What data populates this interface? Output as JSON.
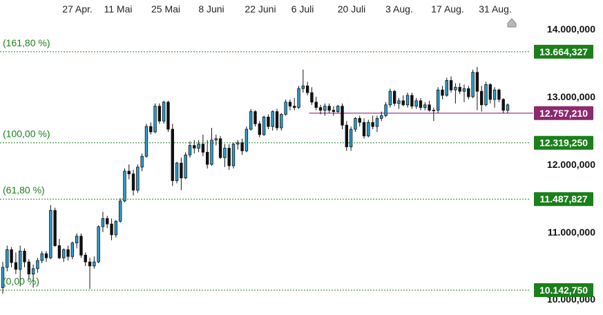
{
  "chart_data": {
    "type": "candlestick",
    "x_ticks": [
      "27 Apr.",
      "11 Mai",
      "25 Mai",
      "8 Juni",
      "22 Juni",
      "6 Juli",
      "20 Juli",
      "3 Aug.",
      "17 Aug.",
      "31 Aug."
    ],
    "y_ticks": [
      "14.000,000",
      "13.000,000",
      "12.000,000",
      "11.000,000",
      "10.000,000"
    ],
    "y_tick_values": [
      14000,
      13000,
      12000,
      11000,
      10000
    ],
    "ylim": [
      9950,
      14250
    ],
    "fibonacci_levels": [
      {
        "label": "(161,80 %)",
        "value": 13664.327,
        "tag": "13.664,327"
      },
      {
        "label": "(100,00 %)",
        "value": 12319.25,
        "tag": "12.319,250"
      },
      {
        "label": "(61,80 %)",
        "value": 11487.827,
        "tag": "11.487,827"
      },
      {
        "label": "(0,00 %)",
        "value": 10142.75,
        "tag": "10.142,750"
      }
    ],
    "current_price": {
      "value": 12757.21,
      "tag": "12.757,210",
      "line_start_index": 71
    },
    "colors": {
      "up": "#2a9fd0",
      "down": "#111111",
      "fib": "#1b7f1b",
      "current": "#8b2a6e",
      "tick": "#222222"
    },
    "candles": [
      {
        "o": 10180,
        "h": 10560,
        "l": 10090,
        "c": 10480
      },
      {
        "o": 10480,
        "h": 10800,
        "l": 10420,
        "c": 10740
      },
      {
        "o": 10740,
        "h": 10780,
        "l": 10480,
        "c": 10550
      },
      {
        "o": 10550,
        "h": 10700,
        "l": 10380,
        "c": 10450
      },
      {
        "o": 10450,
        "h": 10800,
        "l": 10200,
        "c": 10720
      },
      {
        "o": 10720,
        "h": 10760,
        "l": 10480,
        "c": 10560
      },
      {
        "o": 10560,
        "h": 10600,
        "l": 10300,
        "c": 10380
      },
      {
        "o": 10380,
        "h": 10520,
        "l": 10180,
        "c": 10460
      },
      {
        "o": 10460,
        "h": 10620,
        "l": 10400,
        "c": 10580
      },
      {
        "o": 10580,
        "h": 10720,
        "l": 10540,
        "c": 10680
      },
      {
        "o": 10680,
        "h": 10720,
        "l": 10560,
        "c": 10620
      },
      {
        "o": 10620,
        "h": 11400,
        "l": 10600,
        "c": 11320
      },
      {
        "o": 11320,
        "h": 11360,
        "l": 10780,
        "c": 10800
      },
      {
        "o": 10800,
        "h": 10900,
        "l": 10600,
        "c": 10620
      },
      {
        "o": 10620,
        "h": 10760,
        "l": 10560,
        "c": 10740
      },
      {
        "o": 10740,
        "h": 10800,
        "l": 10580,
        "c": 10640
      },
      {
        "o": 10640,
        "h": 10860,
        "l": 10600,
        "c": 10840
      },
      {
        "o": 10840,
        "h": 10980,
        "l": 10760,
        "c": 10940
      },
      {
        "o": 10940,
        "h": 10980,
        "l": 10620,
        "c": 10660
      },
      {
        "o": 10660,
        "h": 10700,
        "l": 10500,
        "c": 10560
      },
      {
        "o": 10560,
        "h": 10620,
        "l": 10160,
        "c": 10500
      },
      {
        "o": 10500,
        "h": 10640,
        "l": 10460,
        "c": 10560
      },
      {
        "o": 10560,
        "h": 11100,
        "l": 10540,
        "c": 11080
      },
      {
        "o": 11080,
        "h": 11300,
        "l": 11000,
        "c": 11200
      },
      {
        "o": 11200,
        "h": 11240,
        "l": 11060,
        "c": 11120
      },
      {
        "o": 11120,
        "h": 11200,
        "l": 10880,
        "c": 10960
      },
      {
        "o": 10960,
        "h": 11180,
        "l": 10920,
        "c": 11160
      },
      {
        "o": 11160,
        "h": 11500,
        "l": 11140,
        "c": 11460
      },
      {
        "o": 11460,
        "h": 11940,
        "l": 11440,
        "c": 11900
      },
      {
        "o": 11900,
        "h": 12000,
        "l": 11780,
        "c": 11860
      },
      {
        "o": 11860,
        "h": 11920,
        "l": 11540,
        "c": 11620
      },
      {
        "o": 11620,
        "h": 12000,
        "l": 11580,
        "c": 11960
      },
      {
        "o": 11960,
        "h": 12160,
        "l": 11900,
        "c": 12120
      },
      {
        "o": 12120,
        "h": 12600,
        "l": 12100,
        "c": 12560
      },
      {
        "o": 12560,
        "h": 12620,
        "l": 12440,
        "c": 12480
      },
      {
        "o": 12480,
        "h": 12900,
        "l": 12460,
        "c": 12860
      },
      {
        "o": 12860,
        "h": 12900,
        "l": 12600,
        "c": 12640
      },
      {
        "o": 12640,
        "h": 12940,
        "l": 12600,
        "c": 12920
      },
      {
        "o": 12920,
        "h": 12940,
        "l": 12480,
        "c": 12520
      },
      {
        "o": 12520,
        "h": 12600,
        "l": 11680,
        "c": 11760
      },
      {
        "o": 11760,
        "h": 12040,
        "l": 11720,
        "c": 12020
      },
      {
        "o": 12020,
        "h": 12100,
        "l": 11620,
        "c": 11800
      },
      {
        "o": 11800,
        "h": 12180,
        "l": 11780,
        "c": 12140
      },
      {
        "o": 12140,
        "h": 12340,
        "l": 12100,
        "c": 12280
      },
      {
        "o": 12280,
        "h": 12360,
        "l": 12160,
        "c": 12240
      },
      {
        "o": 12240,
        "h": 12360,
        "l": 12180,
        "c": 12300
      },
      {
        "o": 12300,
        "h": 12440,
        "l": 12120,
        "c": 12180
      },
      {
        "o": 12180,
        "h": 12360,
        "l": 11940,
        "c": 12000
      },
      {
        "o": 12000,
        "h": 12540,
        "l": 11980,
        "c": 12360
      },
      {
        "o": 12360,
        "h": 12440,
        "l": 12280,
        "c": 12380
      },
      {
        "o": 12380,
        "h": 12420,
        "l": 12080,
        "c": 12100
      },
      {
        "o": 12100,
        "h": 12300,
        "l": 11960,
        "c": 12240
      },
      {
        "o": 12240,
        "h": 12300,
        "l": 11920,
        "c": 11980
      },
      {
        "o": 11980,
        "h": 12320,
        "l": 11940,
        "c": 12300
      },
      {
        "o": 12300,
        "h": 12360,
        "l": 12220,
        "c": 12320
      },
      {
        "o": 12320,
        "h": 12380,
        "l": 12140,
        "c": 12200
      },
      {
        "o": 12200,
        "h": 12560,
        "l": 12180,
        "c": 12520
      },
      {
        "o": 12520,
        "h": 12820,
        "l": 12500,
        "c": 12780
      },
      {
        "o": 12780,
        "h": 12800,
        "l": 12560,
        "c": 12600
      },
      {
        "o": 12600,
        "h": 12640,
        "l": 12400,
        "c": 12440
      },
      {
        "o": 12440,
        "h": 12720,
        "l": 12420,
        "c": 12700
      },
      {
        "o": 12700,
        "h": 12740,
        "l": 12520,
        "c": 12560
      },
      {
        "o": 12560,
        "h": 12800,
        "l": 12500,
        "c": 12780
      },
      {
        "o": 12780,
        "h": 12820,
        "l": 12500,
        "c": 12540
      },
      {
        "o": 12540,
        "h": 12760,
        "l": 12500,
        "c": 12740
      },
      {
        "o": 12740,
        "h": 12960,
        "l": 12720,
        "c": 12920
      },
      {
        "o": 12920,
        "h": 12960,
        "l": 12800,
        "c": 12860
      },
      {
        "o": 12860,
        "h": 12980,
        "l": 12800,
        "c": 12840
      },
      {
        "o": 12840,
        "h": 13160,
        "l": 12820,
        "c": 13120
      },
      {
        "o": 13120,
        "h": 13400,
        "l": 13060,
        "c": 13160
      },
      {
        "o": 13160,
        "h": 13220,
        "l": 13020,
        "c": 13060
      },
      {
        "o": 13060,
        "h": 13140,
        "l": 12880,
        "c": 12920
      },
      {
        "o": 12920,
        "h": 13000,
        "l": 12800,
        "c": 12840
      },
      {
        "o": 12840,
        "h": 12880,
        "l": 12740,
        "c": 12800
      },
      {
        "o": 12800,
        "h": 12900,
        "l": 12720,
        "c": 12860
      },
      {
        "o": 12860,
        "h": 12900,
        "l": 12760,
        "c": 12800
      },
      {
        "o": 12800,
        "h": 12860,
        "l": 12720,
        "c": 12780
      },
      {
        "o": 12780,
        "h": 12880,
        "l": 12760,
        "c": 12860
      },
      {
        "o": 12860,
        "h": 12900,
        "l": 12520,
        "c": 12580
      },
      {
        "o": 12580,
        "h": 12640,
        "l": 12200,
        "c": 12260
      },
      {
        "o": 12260,
        "h": 12560,
        "l": 12200,
        "c": 12520
      },
      {
        "o": 12520,
        "h": 12700,
        "l": 12480,
        "c": 12680
      },
      {
        "o": 12680,
        "h": 12720,
        "l": 12560,
        "c": 12620
      },
      {
        "o": 12620,
        "h": 12680,
        "l": 12380,
        "c": 12420
      },
      {
        "o": 12420,
        "h": 12660,
        "l": 12400,
        "c": 12620
      },
      {
        "o": 12620,
        "h": 12720,
        "l": 12520,
        "c": 12560
      },
      {
        "o": 12560,
        "h": 12720,
        "l": 12480,
        "c": 12680
      },
      {
        "o": 12680,
        "h": 12780,
        "l": 12640,
        "c": 12720
      },
      {
        "o": 12720,
        "h": 12920,
        "l": 12700,
        "c": 12880
      },
      {
        "o": 12880,
        "h": 13120,
        "l": 12840,
        "c": 13080
      },
      {
        "o": 13080,
        "h": 13100,
        "l": 12860,
        "c": 12900
      },
      {
        "o": 12900,
        "h": 12980,
        "l": 12820,
        "c": 12940
      },
      {
        "o": 12940,
        "h": 13020,
        "l": 12860,
        "c": 12880
      },
      {
        "o": 12880,
        "h": 13060,
        "l": 12840,
        "c": 13020
      },
      {
        "o": 13020,
        "h": 13060,
        "l": 12820,
        "c": 12860
      },
      {
        "o": 12860,
        "h": 12980,
        "l": 12820,
        "c": 12940
      },
      {
        "o": 12940,
        "h": 12980,
        "l": 12800,
        "c": 12840
      },
      {
        "o": 12840,
        "h": 12920,
        "l": 12800,
        "c": 12880
      },
      {
        "o": 12880,
        "h": 12940,
        "l": 12780,
        "c": 12800
      },
      {
        "o": 12800,
        "h": 12840,
        "l": 12640,
        "c": 12800
      },
      {
        "o": 12800,
        "h": 13140,
        "l": 12760,
        "c": 13100
      },
      {
        "o": 13100,
        "h": 13160,
        "l": 12960,
        "c": 13020
      },
      {
        "o": 13020,
        "h": 13280,
        "l": 13000,
        "c": 13240
      },
      {
        "o": 13240,
        "h": 13300,
        "l": 13060,
        "c": 13100
      },
      {
        "o": 13100,
        "h": 13200,
        "l": 12900,
        "c": 13140
      },
      {
        "o": 13140,
        "h": 13200,
        "l": 13040,
        "c": 13080
      },
      {
        "o": 13080,
        "h": 13180,
        "l": 12920,
        "c": 13120
      },
      {
        "o": 13120,
        "h": 13160,
        "l": 12960,
        "c": 13000
      },
      {
        "o": 13000,
        "h": 13400,
        "l": 12980,
        "c": 13360
      },
      {
        "o": 13360,
        "h": 13440,
        "l": 12800,
        "c": 13080
      },
      {
        "o": 13080,
        "h": 13160,
        "l": 12780,
        "c": 12880
      },
      {
        "o": 12880,
        "h": 13220,
        "l": 12860,
        "c": 13180
      },
      {
        "o": 13180,
        "h": 13200,
        "l": 12900,
        "c": 12960
      },
      {
        "o": 12960,
        "h": 13140,
        "l": 12840,
        "c": 13100
      },
      {
        "o": 13100,
        "h": 13120,
        "l": 12920,
        "c": 12960
      },
      {
        "o": 12960,
        "h": 12980,
        "l": 12760,
        "c": 12800
      },
      {
        "o": 12800,
        "h": 12900,
        "l": 12760,
        "c": 12880
      }
    ]
  }
}
